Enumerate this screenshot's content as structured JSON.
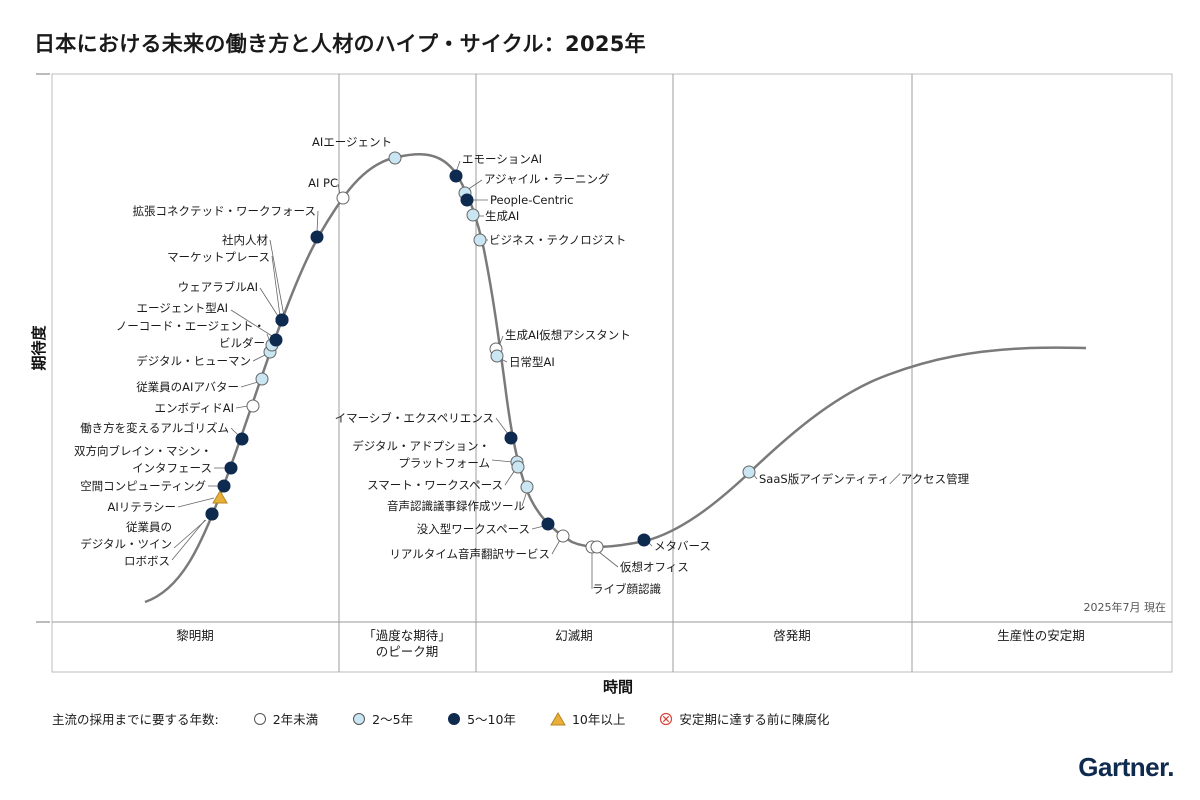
{
  "title": "日本における未来の働き方と人材のハイプ・サイクル：2025年",
  "brand": "Gartner.",
  "colors": {
    "navy": "#0f2a4f",
    "light_blue": "#c9e6f2",
    "white": "#ffffff",
    "orange": "#e8b03a",
    "red": "#d9453a",
    "curve": "#7a7a7a"
  },
  "legend": {
    "heading": "主流の採用までに要する年数:",
    "items": [
      {
        "key": "lt2",
        "label": "2年未満"
      },
      {
        "key": "y2_5",
        "label": "2～5年"
      },
      {
        "key": "y5_10",
        "label": "5～10年"
      },
      {
        "key": "gt10",
        "label": "10年以上"
      },
      {
        "key": "obsolete",
        "label": "安定期に達する前に陳腐化"
      }
    ]
  },
  "chart_data": {
    "type": "scatter",
    "title": "日本における未来の働き方と人材のハイプ・サイクル：2025年",
    "xlabel": "時間",
    "ylabel": "期待度",
    "as_of": "2025年7月 現在",
    "phases": [
      "黎明期",
      "「過度な期待」\nのピーク期",
      "幻滅期",
      "啓発期",
      "生産性の安定期"
    ],
    "technologies": [
      {
        "name": "ロボボス",
        "years": "5～10年"
      },
      {
        "name": "従業員の\nデジタル・ツイン",
        "years": "5～10年"
      },
      {
        "name": "AIリテラシー",
        "years": "10年以上"
      },
      {
        "name": "空間コンピューティング",
        "years": "5～10年"
      },
      {
        "name": "双方向ブレイン・マシン・\nインタフェース",
        "years": "5～10年"
      },
      {
        "name": "働き方を変えるアルゴリズム",
        "years": "5～10年"
      },
      {
        "name": "エンボディドAI",
        "years": "2年未満"
      },
      {
        "name": "従業員のAIアバター",
        "years": "2～5年"
      },
      {
        "name": "デジタル・ヒューマン",
        "years": "2～5年"
      },
      {
        "name": "ノーコード・エージェント・\nビルダー",
        "years": "2～5年"
      },
      {
        "name": "エージェント型AI",
        "years": "5～10年"
      },
      {
        "name": "ウェアラブルAI",
        "years": "5～10年"
      },
      {
        "name": "マーケットプレース",
        "years": "5～10年"
      },
      {
        "name": "社内人材",
        "years": "5～10年"
      },
      {
        "name": "拡張コネクテッド・ワークフォース",
        "years": "5～10年"
      },
      {
        "name": "AI PC",
        "years": "2年未満"
      },
      {
        "name": "AIエージェント",
        "years": "2～5年"
      },
      {
        "name": "エモーションAI",
        "years": "5～10年"
      },
      {
        "name": "アジャイル・ラーニング",
        "years": "2～5年"
      },
      {
        "name": "People-Centric",
        "years": "5～10年"
      },
      {
        "name": "生成AI",
        "years": "2～5年"
      },
      {
        "name": "ビジネス・テクノロジスト",
        "years": "2～5年"
      },
      {
        "name": "生成AI仮想アシスタント",
        "years": "2年未満"
      },
      {
        "name": "日常型AI",
        "years": "2～5年"
      },
      {
        "name": "イマーシブ・エクスペリエンス",
        "years": "5～10年"
      },
      {
        "name": "デジタル・アドプション・\nプラットフォーム",
        "years": "2～5年"
      },
      {
        "name": "スマート・ワークスペース",
        "years": "2～5年"
      },
      {
        "name": "音声認識議事録作成ツール",
        "years": "2～5年"
      },
      {
        "name": "没入型ワークスペース",
        "years": "5～10年"
      },
      {
        "name": "リアルタイム音声翻訳サービス",
        "years": "2年未満"
      },
      {
        "name": "ライブ顔認識",
        "years": "2年未満"
      },
      {
        "name": "仮想オフィス",
        "years": "2年未満"
      },
      {
        "name": "メタバース",
        "years": "5～10年"
      },
      {
        "name": "SaaS版アイデンティティ／アクセス管理",
        "years": "2～5年"
      }
    ]
  }
}
